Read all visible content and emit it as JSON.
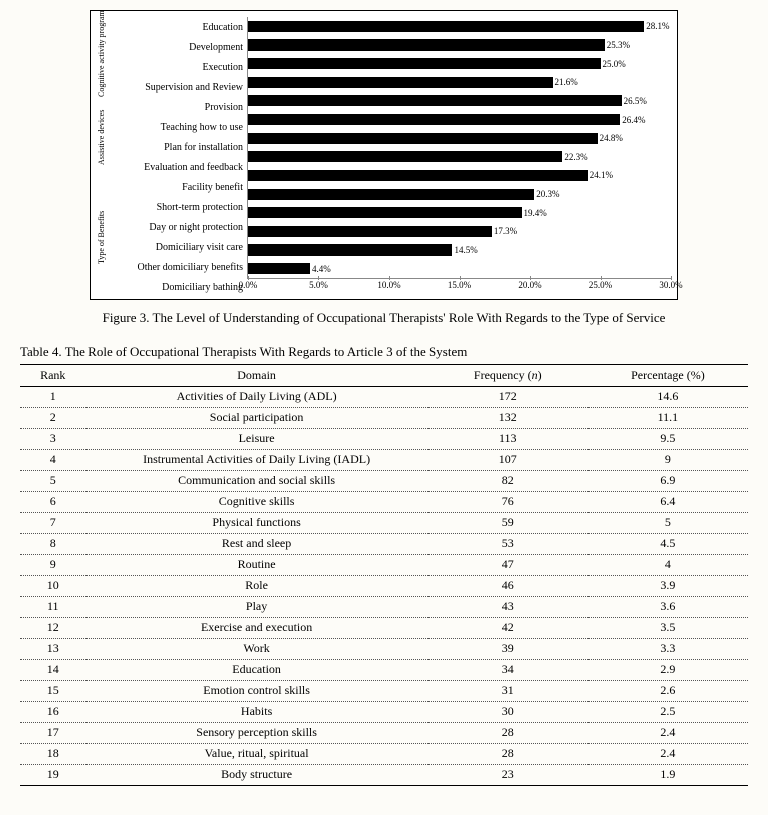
{
  "chart": {
    "type": "bar-horizontal",
    "x_max": 30.0,
    "x_tick_step": 5.0,
    "x_tick_format_suffix": "%",
    "bar_color": "#000000",
    "background": "#ffffff",
    "tick_color": "#888888",
    "groups": [
      {
        "label": "Cognitive\nactivity program",
        "start": 0,
        "end": 4
      },
      {
        "label": "Assistive devices",
        "start": 4,
        "end": 8
      },
      {
        "label": "Type of Benefits",
        "start": 8,
        "end": 14
      }
    ],
    "bars": [
      {
        "label": "Education",
        "value": 28.1,
        "display": "28.1%"
      },
      {
        "label": "Development",
        "value": 25.3,
        "display": "25.3%"
      },
      {
        "label": "Execution",
        "value": 25.0,
        "display": "25.0%"
      },
      {
        "label": "Supervision and Review",
        "value": 21.6,
        "display": "21.6%"
      },
      {
        "label": "Provision",
        "value": 26.5,
        "display": "26.5%"
      },
      {
        "label": "Teaching how to use",
        "value": 26.4,
        "display": "26.4%"
      },
      {
        "label": "Plan for installation",
        "value": 24.8,
        "display": "24.8%"
      },
      {
        "label": "Evaluation and feedback",
        "value": 22.3,
        "display": "22.3%"
      },
      {
        "label": "Facility benefit",
        "value": 24.1,
        "display": "24.1%"
      },
      {
        "label": "Short-term protection",
        "value": 20.3,
        "display": "20.3%"
      },
      {
        "label": "Day or night protection",
        "value": 19.4,
        "display": "19.4%"
      },
      {
        "label": "Domiciliary visit care",
        "value": 17.3,
        "display": "17.3%"
      },
      {
        "label": "Other domiciliary benefits",
        "value": 14.5,
        "display": "14.5%"
      },
      {
        "label": "Domiciliary bathing",
        "value": 4.4,
        "display": "4.4%"
      }
    ]
  },
  "figure_caption": "Figure 3. The Level of Understanding of Occupational Therapists' Role With Regards to the Type of Service",
  "table_caption": "Table 4. The Role of Occupational Therapists With Regards to Article 3 of the System",
  "table": {
    "headers": {
      "rank": "Rank",
      "domain": "Domain",
      "freq": "Frequency (n)",
      "pct": "Percentage (%)"
    },
    "rows": [
      {
        "rank": "1",
        "domain": "Activities of Daily Living (ADL)",
        "freq": "172",
        "pct": "14.6"
      },
      {
        "rank": "2",
        "domain": "Social participation",
        "freq": "132",
        "pct": "11.1"
      },
      {
        "rank": "3",
        "domain": "Leisure",
        "freq": "113",
        "pct": "9.5"
      },
      {
        "rank": "4",
        "domain": "Instrumental Activities of Daily Living (IADL)",
        "freq": "107",
        "pct": "9"
      },
      {
        "rank": "5",
        "domain": "Communication and social skills",
        "freq": "82",
        "pct": "6.9"
      },
      {
        "rank": "6",
        "domain": "Cognitive skills",
        "freq": "76",
        "pct": "6.4"
      },
      {
        "rank": "7",
        "domain": "Physical functions",
        "freq": "59",
        "pct": "5"
      },
      {
        "rank": "8",
        "domain": "Rest and sleep",
        "freq": "53",
        "pct": "4.5"
      },
      {
        "rank": "9",
        "domain": "Routine",
        "freq": "47",
        "pct": "4"
      },
      {
        "rank": "10",
        "domain": "Role",
        "freq": "46",
        "pct": "3.9"
      },
      {
        "rank": "11",
        "domain": "Play",
        "freq": "43",
        "pct": "3.6"
      },
      {
        "rank": "12",
        "domain": "Exercise and execution",
        "freq": "42",
        "pct": "3.5"
      },
      {
        "rank": "13",
        "domain": "Work",
        "freq": "39",
        "pct": "3.3"
      },
      {
        "rank": "14",
        "domain": "Education",
        "freq": "34",
        "pct": "2.9"
      },
      {
        "rank": "15",
        "domain": "Emotion control skills",
        "freq": "31",
        "pct": "2.6"
      },
      {
        "rank": "16",
        "domain": "Habits",
        "freq": "30",
        "pct": "2.5"
      },
      {
        "rank": "17",
        "domain": "Sensory perception skills",
        "freq": "28",
        "pct": "2.4"
      },
      {
        "rank": "18",
        "domain": "Value, ritual, spiritual",
        "freq": "28",
        "pct": "2.4"
      },
      {
        "rank": "19",
        "domain": "Body structure",
        "freq": "23",
        "pct": "1.9"
      }
    ]
  }
}
